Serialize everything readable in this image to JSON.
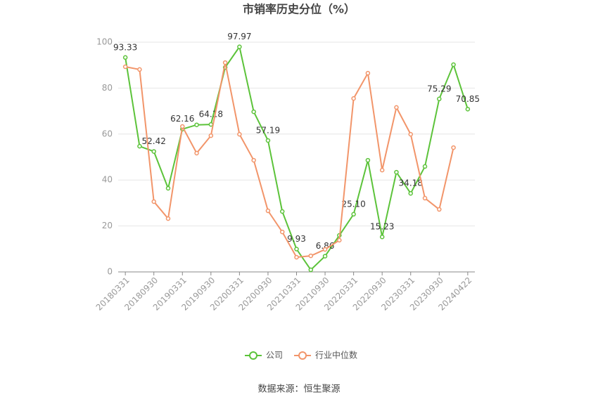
{
  "chart_data": {
    "type": "line",
    "title": "市销率历史分位（%）",
    "source": "数据来源：恒生聚源",
    "categories": [
      "20180331",
      null,
      "20180930",
      null,
      "20190331",
      null,
      "20190930",
      null,
      "20200331",
      null,
      "20200930",
      null,
      "20210331",
      null,
      "20210930",
      null,
      "20220331",
      null,
      "20220930",
      null,
      "20230331",
      null,
      "20230930",
      null,
      "20240422"
    ],
    "ylim": [
      0,
      100
    ],
    "yticks": [
      0,
      20,
      40,
      60,
      80,
      100
    ],
    "grid": true,
    "legend": "bottom",
    "series": [
      {
        "name": "公司",
        "color": "#5cc33a",
        "values": [
          93.33,
          54.7,
          52.42,
          36.4,
          62.16,
          64.0,
          64.18,
          89.0,
          97.97,
          69.7,
          57.19,
          26.3,
          9.93,
          0.9,
          6.86,
          15.9,
          25.1,
          48.6,
          15.23,
          43.4,
          34.18,
          45.9,
          75.29,
          90.2,
          70.85
        ],
        "value_labels": [
          "93.33",
          null,
          "52.42",
          null,
          "62.16",
          null,
          "64.18",
          null,
          "97.97",
          null,
          "57.19",
          null,
          "9.93",
          null,
          "6.86",
          null,
          "25.10",
          null,
          "15.23",
          null,
          "34.18",
          null,
          "75.29",
          null,
          "70.85"
        ]
      },
      {
        "name": "行业中位数",
        "color": "#f2956a",
        "values": [
          89.3,
          88.1,
          30.6,
          23.2,
          63.3,
          51.7,
          59.3,
          91.1,
          59.9,
          48.6,
          26.6,
          17.4,
          6.4,
          7.0,
          9.8,
          13.8,
          75.5,
          86.5,
          44.3,
          71.6,
          59.9,
          32.1,
          27.2,
          54.1,
          null
        ]
      }
    ]
  }
}
